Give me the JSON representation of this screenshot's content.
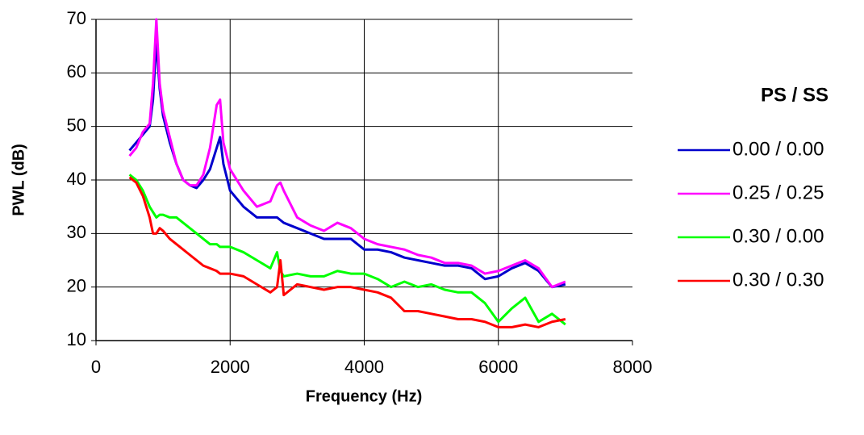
{
  "chart_data": {
    "type": "line",
    "x_label": "Frequency (Hz)",
    "y_label": "PWL (dB)",
    "legend_title": "PS / SS",
    "x": [
      500,
      600,
      700,
      800,
      850,
      900,
      950,
      1000,
      1100,
      1200,
      1300,
      1400,
      1500,
      1600,
      1700,
      1800,
      1850,
      1900,
      2000,
      2200,
      2400,
      2600,
      2700,
      2750,
      2800,
      3000,
      3200,
      3400,
      3600,
      3800,
      4000,
      4200,
      4400,
      4600,
      4800,
      5000,
      5200,
      5400,
      5600,
      5800,
      6000,
      6200,
      6400,
      6600,
      6800,
      7000
    ],
    "series": [
      {
        "name": "0.00 / 0.00",
        "color": "#0000cc",
        "values": [
          45.5,
          47,
          48.5,
          50,
          55,
          66,
          57,
          52,
          47,
          43,
          40,
          39,
          38.5,
          40,
          42,
          46,
          48,
          43,
          38,
          35,
          33,
          33,
          33,
          32.5,
          32,
          31,
          30,
          29,
          29,
          29,
          27,
          27,
          26.5,
          25.5,
          25,
          24.5,
          24,
          24,
          23.5,
          21.5,
          22,
          23.5,
          24.5,
          23,
          20,
          20.5
        ]
      },
      {
        "name": "0.25 / 0.25",
        "color": "#ff00ff",
        "values": [
          44.5,
          46,
          49,
          50.5,
          58,
          70,
          58,
          53,
          48,
          43,
          40,
          39,
          39,
          41,
          46,
          54,
          55,
          47,
          42,
          38,
          35,
          36,
          39,
          39.5,
          38,
          33,
          31.5,
          30.5,
          32,
          31,
          29,
          28,
          27.5,
          27,
          26,
          25.5,
          24.5,
          24.5,
          24,
          22.5,
          23,
          24,
          25,
          23.5,
          20,
          21
        ]
      },
      {
        "name": "0.30 / 0.00",
        "color": "#00ff00",
        "values": [
          41,
          40,
          38,
          35,
          34,
          33,
          33.5,
          33.5,
          33,
          33,
          32,
          31,
          30,
          29,
          28,
          28,
          27.5,
          27.5,
          27.5,
          26.5,
          25,
          23.5,
          26.5,
          23,
          22,
          22.5,
          22,
          22,
          23,
          22.5,
          22.5,
          21.5,
          20,
          21,
          20,
          20.5,
          19.5,
          19,
          19,
          17,
          13.5,
          16,
          18,
          13.5,
          15,
          13
        ]
      },
      {
        "name": "0.30 / 0.30",
        "color": "#ff0000",
        "values": [
          40.5,
          39.5,
          37,
          33,
          30,
          30,
          31,
          30.5,
          29,
          28,
          27,
          26,
          25,
          24,
          23.5,
          23,
          22.5,
          22.5,
          22.5,
          22,
          20.5,
          19,
          20,
          25,
          18.5,
          20.5,
          20,
          19.5,
          20,
          20,
          19.5,
          19,
          18,
          15.5,
          15.5,
          15,
          14.5,
          14,
          14,
          13.5,
          12.5,
          12.5,
          13,
          12.5,
          13.5,
          14
        ]
      }
    ],
    "xlim": [
      0,
      8000
    ],
    "xticks": [
      0,
      2000,
      4000,
      6000,
      8000
    ],
    "ylim": [
      10,
      70
    ],
    "yticks": [
      10,
      20,
      30,
      40,
      50,
      60,
      70
    ],
    "grid": true
  }
}
